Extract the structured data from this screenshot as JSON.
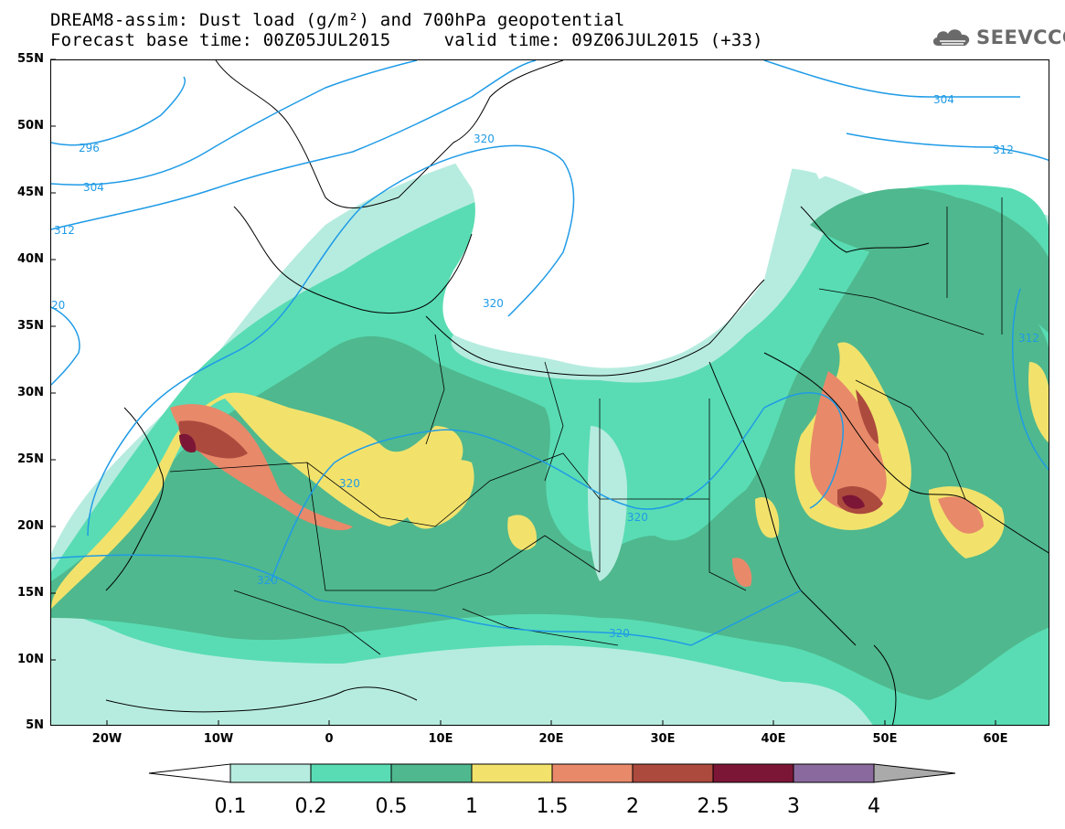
{
  "header": {
    "title_line_1": "DREAM8-assim: Dust load (g/m²) and 700hPa geopotential",
    "title_line_2": "Forecast base time: 00Z05JUL2015     valid time: 09Z06JUL2015 (+33)"
  },
  "logo": {
    "text": "SEEVCCC",
    "icon": "cloud-logo-icon"
  },
  "map": {
    "lat_labels": [
      "55N",
      "50N",
      "45N",
      "40N",
      "35N",
      "30N",
      "25N",
      "20N",
      "15N",
      "10N",
      "5N"
    ],
    "lon_labels": [
      "20W",
      "10W",
      "0",
      "10E",
      "20E",
      "30E",
      "40E",
      "50E",
      "60E"
    ],
    "contour_labels": [
      "296",
      "304",
      "312",
      "20",
      "320",
      "320",
      "320",
      "320",
      "320",
      "320",
      "304",
      "312",
      "312"
    ],
    "colors": {
      "dust_0_1": "#b6ecdf",
      "dust_0_2": "#59dcb3",
      "dust_0_5": "#4fb88e",
      "dust_1": "#f2e26c",
      "dust_1_5": "#e8896a",
      "dust_2": "#ad4a3e",
      "dust_2_5": "#7c1636",
      "dust_3": "#8a6a9e",
      "contour": "#1f9be6",
      "coastline": "#000000"
    }
  },
  "colorbar": {
    "ticks": [
      "0.1",
      "0.2",
      "0.5",
      "1",
      "1.5",
      "2",
      "2.5",
      "3",
      "4"
    ],
    "colors": [
      "#ffffff",
      "#b6ecdf",
      "#59dcb3",
      "#4fb88e",
      "#f2e26c",
      "#e8896a",
      "#ad4a3e",
      "#7c1636",
      "#8a6a9e",
      "#aaaaaa"
    ]
  }
}
